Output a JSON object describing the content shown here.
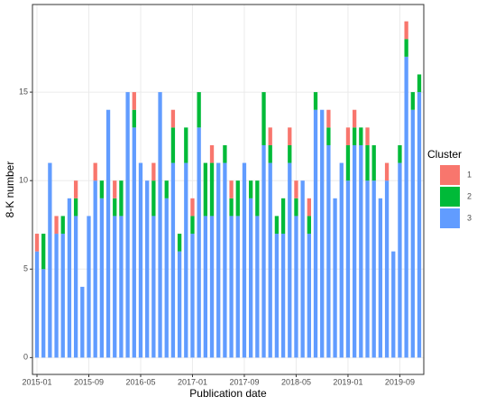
{
  "chart_data": {
    "type": "stacked-bar",
    "x_label": "Publication date",
    "y_label": "8-K number",
    "legend_title": "Cluster",
    "categories": [
      "2015-01",
      null,
      null,
      null,
      null,
      null,
      null,
      null,
      "2015-09",
      null,
      null,
      null,
      null,
      null,
      null,
      null,
      "2016-05",
      null,
      null,
      null,
      null,
      null,
      null,
      null,
      "2017-01",
      null,
      null,
      null,
      null,
      null,
      null,
      null,
      "2017-09",
      null,
      null,
      null,
      null,
      null,
      null,
      null,
      "2018-05",
      null,
      null,
      null,
      null,
      null,
      null,
      null,
      "2019-01",
      null,
      null,
      null,
      null,
      null,
      null,
      null,
      "2019-09",
      null,
      null,
      null
    ],
    "series": [
      {
        "name": "1",
        "color": "#f8766d",
        "values": [
          1,
          0,
          0,
          1,
          0,
          0,
          1,
          0,
          0,
          1,
          0,
          0,
          1,
          0,
          0,
          1,
          0,
          0,
          1,
          0,
          0,
          1,
          0,
          0,
          1,
          0,
          0,
          1,
          0,
          0,
          1,
          0,
          0,
          0,
          0,
          0,
          1,
          0,
          0,
          1,
          1,
          0,
          1,
          0,
          0,
          1,
          0,
          0,
          1,
          1,
          0,
          1,
          0,
          0,
          1,
          0,
          0,
          1,
          0,
          0
        ]
      },
      {
        "name": "2",
        "color": "#00ba38",
        "values": [
          0,
          2,
          0,
          0,
          1,
          0,
          1,
          0,
          0,
          0,
          1,
          0,
          1,
          2,
          0,
          1,
          0,
          0,
          2,
          0,
          1,
          2,
          1,
          2,
          1,
          2,
          3,
          3,
          0,
          1,
          1,
          2,
          0,
          1,
          2,
          3,
          1,
          1,
          2,
          1,
          1,
          0,
          1,
          1,
          0,
          1,
          0,
          0,
          2,
          1,
          1,
          2,
          2,
          0,
          0,
          0,
          1,
          1,
          1,
          1
        ]
      },
      {
        "name": "3",
        "color": "#619cff",
        "values": [
          6,
          5,
          11,
          7,
          7,
          9,
          8,
          4,
          8,
          10,
          9,
          14,
          8,
          8,
          15,
          13,
          11,
          10,
          8,
          15,
          9,
          11,
          6,
          11,
          7,
          13,
          8,
          8,
          11,
          11,
          8,
          8,
          11,
          9,
          8,
          12,
          11,
          7,
          7,
          11,
          8,
          10,
          7,
          14,
          14,
          12,
          9,
          11,
          10,
          12,
          12,
          10,
          10,
          9,
          10,
          6,
          11,
          17,
          14,
          15
        ]
      }
    ],
    "ylim": [
      -0.95,
      19.95
    ],
    "yticks": [
      0,
      5,
      10,
      15
    ],
    "grid": true
  }
}
